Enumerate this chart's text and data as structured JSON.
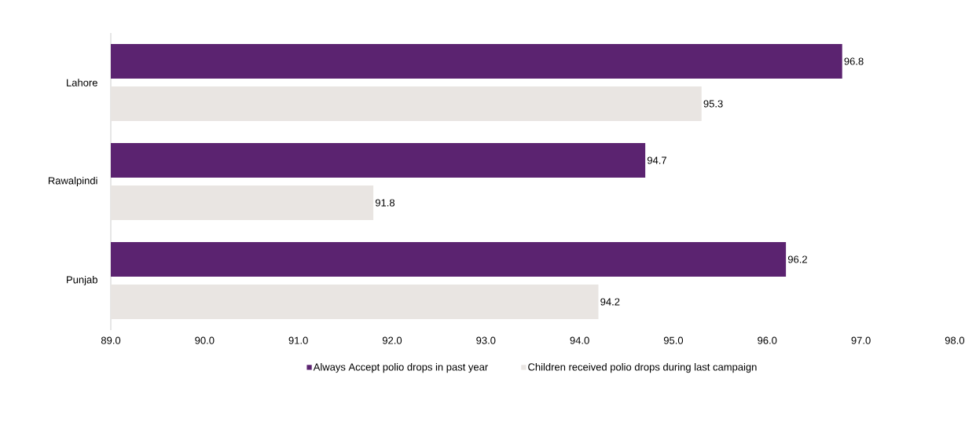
{
  "chart_data": {
    "type": "bar",
    "orientation": "horizontal",
    "categories": [
      "Lahore",
      "Rawalpindi",
      "Punjab"
    ],
    "series": [
      {
        "name": "Always Accept polio drops in past year",
        "color": "#5b2370",
        "values": [
          96.8,
          94.7,
          96.2
        ]
      },
      {
        "name": "Children received polio drops during last campaign",
        "color": "#e9e5e2",
        "values": [
          95.3,
          91.8,
          94.2
        ]
      }
    ],
    "xlim": [
      89,
      98
    ],
    "xticks": [
      {
        "value": 89,
        "label": "89.0"
      },
      {
        "value": 90,
        "label": "90.0"
      },
      {
        "value": 91,
        "label": "91.0"
      },
      {
        "value": 92,
        "label": "92.0"
      },
      {
        "value": 93,
        "label": "93.0"
      },
      {
        "value": 94,
        "label": "94.0"
      },
      {
        "value": 95,
        "label": "95.0"
      },
      {
        "value": 96,
        "label": "96.0"
      },
      {
        "value": 97,
        "label": "97.0"
      },
      {
        "value": 98,
        "label": "98.0"
      }
    ],
    "data_labels": true,
    "grid": false,
    "legend": "bottom"
  }
}
